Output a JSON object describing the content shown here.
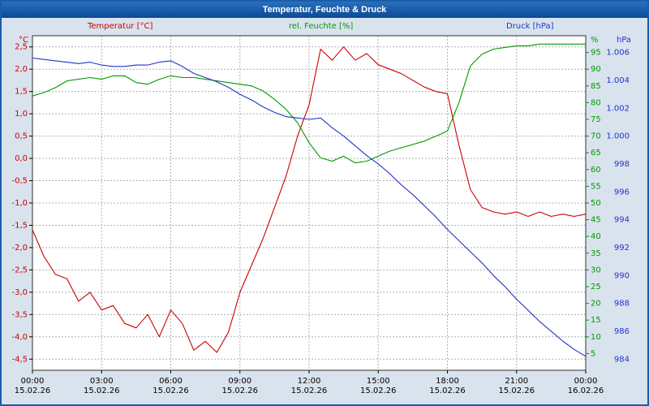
{
  "window": {
    "title": "Temperatur, Feuchte & Druck"
  },
  "colors": {
    "temperature": "#cc0000",
    "humidity": "#009900",
    "pressure": "#2233cc",
    "grid": "#b0b0b0",
    "plot_border": "#303030",
    "background": "#d9e3ee",
    "titlebar": "#0b4a97"
  },
  "chart_data": {
    "type": "line",
    "title": "Temperatur, Feuchte & Druck",
    "legend_position": "top",
    "x_hours": [
      0,
      0.5,
      1,
      1.5,
      2,
      2.5,
      3,
      3.5,
      4,
      4.5,
      5,
      5.5,
      6,
      6.5,
      7,
      7.5,
      8,
      8.5,
      9,
      9.5,
      10,
      10.5,
      11,
      11.5,
      12,
      12.5,
      13,
      13.5,
      14,
      14.5,
      15,
      15.5,
      16,
      16.5,
      17,
      17.5,
      18,
      18.5,
      19,
      19.5,
      20,
      20.5,
      21,
      21.5,
      22,
      22.5,
      23,
      23.5,
      24
    ],
    "x_axis": {
      "min_hour": 0,
      "max_hour": 24,
      "tick_hours": [
        0,
        3,
        6,
        9,
        12,
        15,
        18,
        21,
        24
      ],
      "tick_times": [
        "00:00",
        "03:00",
        "06:00",
        "09:00",
        "12:00",
        "15:00",
        "18:00",
        "21:00",
        "00:00"
      ],
      "tick_dates": [
        "15.02.26",
        "15.02.26",
        "15.02.26",
        "15.02.26",
        "15.02.26",
        "15.02.26",
        "15.02.26",
        "15.02.26",
        "16.02.26"
      ]
    },
    "axes": {
      "temperature": {
        "unit": "°C",
        "side": "left",
        "color": "#cc0000",
        "min": -4.75,
        "max": 2.75,
        "tick_values": [
          2.5,
          2.0,
          1.5,
          1.0,
          0.5,
          0.0,
          -0.5,
          -1.0,
          -1.5,
          -2.0,
          -2.5,
          -3.0,
          -3.5,
          -4.0,
          -4.5
        ],
        "tick_labels": [
          "2,5",
          "2,0",
          "1,5",
          "1,0",
          "0,5",
          "0,0",
          "-0,5",
          "-1,0",
          "-1,5",
          "-2,0",
          "-2,5",
          "-3,0",
          "-3,5",
          "-4,0",
          "-4,5"
        ]
      },
      "humidity": {
        "unit": "%",
        "side": "right-inner",
        "color": "#009900",
        "min": 0,
        "max": 100,
        "tick_values": [
          95,
          90,
          85,
          80,
          75,
          70,
          65,
          60,
          55,
          50,
          45,
          40,
          35,
          30,
          25,
          20,
          15,
          10,
          5
        ],
        "tick_labels": [
          "95",
          "90",
          "85",
          "80",
          "75",
          "70",
          "65",
          "60",
          "55",
          "50",
          "45",
          "40",
          "35",
          "30",
          "25",
          "20",
          "15",
          "10",
          "5"
        ]
      },
      "pressure": {
        "unit": "hPa",
        "side": "right-outer",
        "color": "#2233cc",
        "min": 983.2,
        "max": 1007.2,
        "tick_values": [
          1006,
          1004,
          1002,
          1000,
          998,
          996,
          994,
          992,
          990,
          988,
          986,
          984
        ],
        "tick_labels": [
          "1.006",
          "1.004",
          "1.002",
          "1.000",
          "998",
          "996",
          "994",
          "992",
          "990",
          "988",
          "986",
          "984"
        ]
      }
    },
    "series": [
      {
        "name": "Temperatur [°C]",
        "axis": "temperature",
        "color": "#cc0000",
        "values": [
          -1.6,
          -2.2,
          -2.6,
          -2.7,
          -3.2,
          -3.0,
          -3.4,
          -3.3,
          -3.7,
          -3.8,
          -3.5,
          -4.0,
          -3.4,
          -3.7,
          -4.3,
          -4.1,
          -4.35,
          -3.9,
          -3.0,
          -2.4,
          -1.8,
          -1.1,
          -0.4,
          0.5,
          1.2,
          2.45,
          2.2,
          2.5,
          2.2,
          2.35,
          2.1,
          2.0,
          1.9,
          1.75,
          1.6,
          1.5,
          1.45,
          0.3,
          -0.7,
          -1.1,
          -1.2,
          -1.25,
          -1.2,
          -1.3,
          -1.2,
          -1.3,
          -1.25,
          -1.3,
          -1.25
        ]
      },
      {
        "name": "rel. Feuchte [%]",
        "axis": "humidity",
        "color": "#009900",
        "values": [
          82,
          83,
          84.5,
          86.5,
          87,
          87.5,
          87,
          88,
          88,
          86,
          85.5,
          87,
          88,
          87.5,
          87.5,
          87,
          86.5,
          86,
          85.5,
          85,
          83.5,
          81,
          78,
          74,
          68,
          63.5,
          62.5,
          64,
          62,
          62.5,
          64,
          65.5,
          66.5,
          67.5,
          68.5,
          70,
          71.5,
          80,
          91,
          94.5,
          96,
          96.5,
          97,
          97,
          97.5,
          97.5,
          97.5,
          97.5,
          97.5
        ]
      },
      {
        "name": "Druck [hPa]",
        "axis": "pressure",
        "color": "#2233cc",
        "values": [
          1005.6,
          1005.5,
          1005.4,
          1005.3,
          1005.2,
          1005.3,
          1005.1,
          1005.0,
          1005.0,
          1005.1,
          1005.1,
          1005.3,
          1005.4,
          1005.0,
          1004.5,
          1004.2,
          1003.9,
          1003.5,
          1003.0,
          1002.6,
          1002.1,
          1001.7,
          1001.4,
          1001.3,
          1001.2,
          1001.3,
          1000.6,
          1000.0,
          999.3,
          998.6,
          998.0,
          997.3,
          996.5,
          995.8,
          995.0,
          994.2,
          993.3,
          992.5,
          991.7,
          990.9,
          990.0,
          989.2,
          988.3,
          987.5,
          986.7,
          986.0,
          985.3,
          984.7,
          984.2
        ]
      }
    ]
  }
}
